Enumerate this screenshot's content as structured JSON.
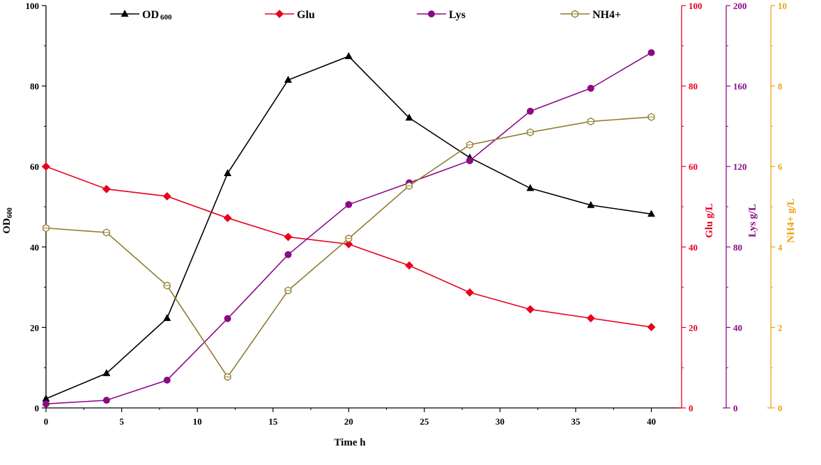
{
  "chart_data": {
    "type": "line",
    "title": "",
    "xlabel": "Time  h",
    "xlim": [
      0,
      42
    ],
    "xticks": [
      0,
      5,
      10,
      15,
      20,
      25,
      30,
      35,
      40
    ],
    "x": [
      0,
      4,
      8,
      12,
      16,
      20,
      24,
      28,
      32,
      36,
      40
    ],
    "grid": false,
    "legend_position": "top",
    "axes": [
      {
        "id": "od",
        "label_main": "OD",
        "label_sub": "600",
        "side": "left",
        "ylim": [
          0,
          100
        ],
        "ticks": [
          0,
          20,
          40,
          60,
          80,
          100
        ],
        "color": "#000000"
      },
      {
        "id": "glu",
        "label_main": "Glu g/L",
        "label_sub": "",
        "side": "right",
        "ylim": [
          0,
          100
        ],
        "ticks": [
          0,
          20,
          40,
          60,
          80,
          100
        ],
        "color": "#e8001c"
      },
      {
        "id": "lys",
        "label_main": "Lys g/L",
        "label_sub": "",
        "side": "right",
        "ylim": [
          0,
          200
        ],
        "ticks": [
          0,
          40,
          80,
          120,
          160,
          200
        ],
        "color": "#8b0a87"
      },
      {
        "id": "nh4",
        "label_main": "NH4+ g/L",
        "label_sub": "",
        "side": "right",
        "ylim": [
          0,
          10
        ],
        "ticks": [
          0,
          2,
          4,
          6,
          8,
          10
        ],
        "color": "#eba40f"
      }
    ],
    "series": [
      {
        "name": "OD",
        "name_sub": "600",
        "axis": "od",
        "color": "#000000",
        "marker": "triangle",
        "values": [
          2.3,
          8.6,
          22.3,
          58.3,
          81.5,
          87.4,
          72.1,
          62.2,
          54.6,
          50.4,
          48.2
        ]
      },
      {
        "name": "Glu",
        "name_sub": "",
        "axis": "glu",
        "color": "#e8001c",
        "marker": "diamond",
        "values": [
          60.0,
          54.4,
          52.6,
          47.2,
          42.5,
          40.7,
          35.4,
          28.7,
          24.5,
          22.3,
          20.1
        ]
      },
      {
        "name": "Lys",
        "name_sub": "",
        "axis": "lys",
        "color": "#8b0a87",
        "marker": "circle",
        "values": [
          2.0,
          3.8,
          13.8,
          44.4,
          76.2,
          101.1,
          111.9,
          122.9,
          147.5,
          158.9,
          176.6
        ]
      },
      {
        "name": "NH4+",
        "name_sub": "",
        "axis": "nh4",
        "color": "#8f7d2c",
        "marker": "hexagon",
        "values": [
          4.47,
          4.36,
          3.04,
          0.77,
          2.92,
          4.21,
          5.52,
          6.54,
          6.85,
          7.12,
          7.23
        ]
      }
    ]
  }
}
